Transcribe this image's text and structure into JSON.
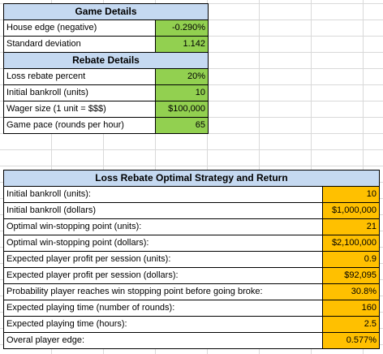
{
  "game_details": {
    "title": "Game Details",
    "rows": [
      {
        "label": "House edge (negative)",
        "value": "-0.290%"
      },
      {
        "label": "Standard deviation",
        "value": "1.142"
      }
    ]
  },
  "rebate_details": {
    "title": "Rebate Details",
    "rows": [
      {
        "label": "Loss rebate percent",
        "value": "20%"
      },
      {
        "label": "Initial bankroll (units)",
        "value": "10"
      },
      {
        "label": "Wager size (1 unit = $$$)",
        "value": "$100,000"
      },
      {
        "label": "Game pace (rounds per hour)",
        "value": "65"
      }
    ]
  },
  "strategy": {
    "title": "Loss Rebate Optimal Strategy and Return",
    "rows": [
      {
        "label": "Initial bankroll (units):",
        "value": "10"
      },
      {
        "label": "Initial bankroll (dollars)",
        "value": "$1,000,000"
      },
      {
        "label": "Optimal win-stopping point (units):",
        "value": "21"
      },
      {
        "label": "Optimal win-stopping point (dollars):",
        "value": "$2,100,000"
      },
      {
        "label": "Expected player profit per session (units):",
        "value": "0.9"
      },
      {
        "label": "Expected player profit per session (dollars):",
        "value": "$92,095"
      },
      {
        "label": "Probability player reaches win stopping point before going broke:",
        "value": "30.8%"
      },
      {
        "label": "Expected playing time (number of rounds):",
        "value": "160"
      },
      {
        "label": "Expected playing time (hours):",
        "value": "2.5"
      },
      {
        "label": "Overal player edge:",
        "value": "0.577%"
      }
    ]
  },
  "colors": {
    "header": "#c5d9f1",
    "input_green": "#92d050",
    "output_orange": "#ffc000"
  }
}
